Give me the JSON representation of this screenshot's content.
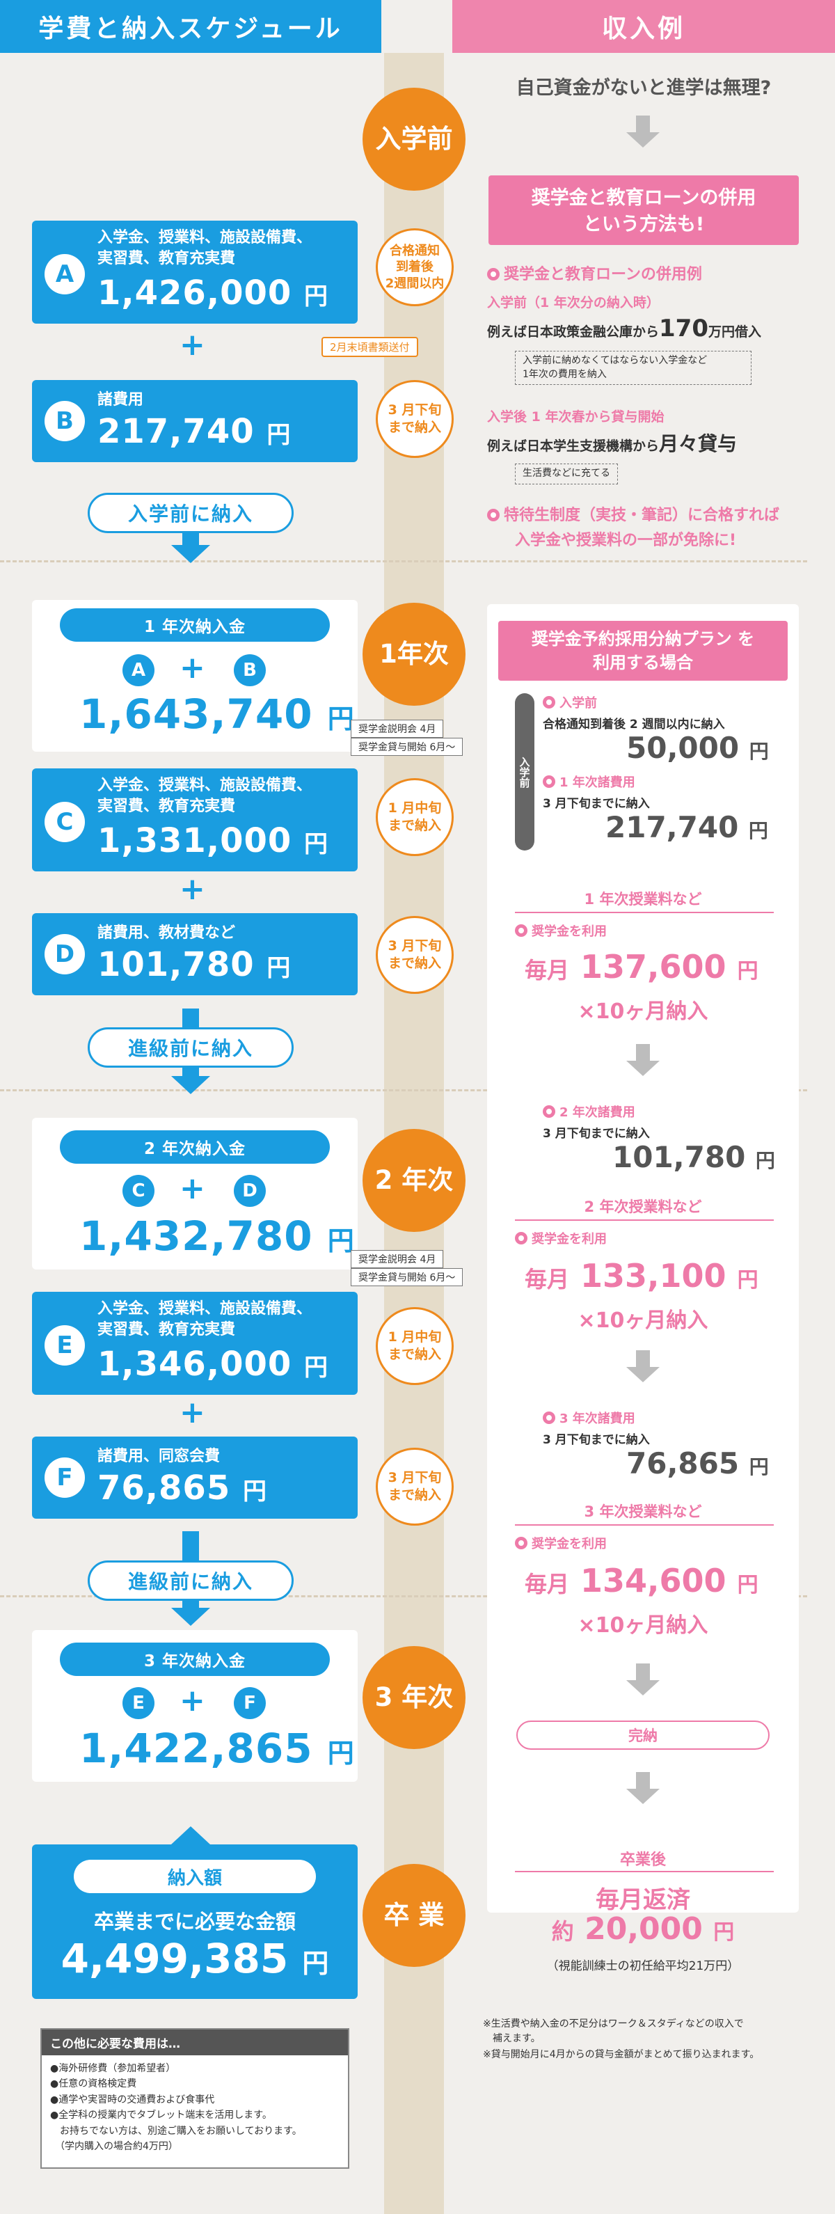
{
  "header": {
    "left_title": "学費と納入スケジュール",
    "right_title": "収入例"
  },
  "stages": {
    "pre": "入学前",
    "y1": "1年次",
    "y2": "2 年次",
    "y3": "3 年次",
    "grad": "卒 業"
  },
  "pre_enroll": {
    "a": {
      "label": "A",
      "desc": "入学金、授業料、施設設備費、\n実習費、教育充実費",
      "amount": "1,426,000",
      "yen": "円"
    },
    "b": {
      "label": "B",
      "desc": "諸費用",
      "amount": "217,740",
      "yen": "円"
    },
    "a_timing": "合格通知\n到着後\n2週間以内",
    "b_timing": "3 月下旬\nまで納入",
    "tag": "2月末頃書類送付",
    "pay_label": "入学前に納入"
  },
  "year1": {
    "total_title": "1 年次納入金",
    "formula": [
      "A",
      "B"
    ],
    "total": "1,643,740",
    "c": {
      "label": "C",
      "desc": "入学金、授業料、施設設備費、\n実習費、教育充実費",
      "amount": "1,331,000",
      "yen": "円"
    },
    "d": {
      "label": "D",
      "desc": "諸費用、教材費など",
      "amount": "101,780",
      "yen": "円"
    },
    "c_timing": "1 月中旬\nまで納入",
    "d_timing": "3 月下旬\nまで納入",
    "notes": [
      "奨学金説明会 4月",
      "奨学金貸与開始 6月〜"
    ],
    "pay_label": "進級前に納入"
  },
  "year2": {
    "total_title": "2 年次納入金",
    "formula": [
      "C",
      "D"
    ],
    "total": "1,432,780",
    "e": {
      "label": "E",
      "desc": "入学金、授業料、施設設備費、\n実習費、教育充実費",
      "amount": "1,346,000",
      "yen": "円"
    },
    "f": {
      "label": "F",
      "desc": "諸費用、同窓会費",
      "amount": "76,865",
      "yen": "円"
    },
    "e_timing": "1 月中旬\nまで納入",
    "f_timing": "3 月下旬\nまで納入",
    "notes": [
      "奨学金説明会 4月",
      "奨学金貸与開始 6月〜"
    ],
    "pay_label": "進級前に納入"
  },
  "year3": {
    "total_title": "3 年次納入金",
    "formula": [
      "E",
      "F"
    ],
    "total": "1,422,865"
  },
  "grad": {
    "title": "納入額",
    "subtitle": "卒業までに必要な金額",
    "total": "4,499,385"
  },
  "extras": {
    "title": "この他に必要な費用は…",
    "items": [
      "●海外研修費（参加希望者）",
      "●任意の資格検定費",
      "●通学や実習時の交通費および食事代",
      "●全学科の授業内でタブレット端末を活用します。",
      "　お持ちでない方は、別途ご購入をお願いしております。",
      "　（学内購入の場合約4万円）"
    ]
  },
  "income": {
    "q": "自己資金がないと進学は無理?",
    "combo_title": "奨学金と教育ローンの併用\nという方法も!",
    "combo_example": "奨学金と教育ローンの併用例",
    "pre_label": "入学前（1 年次分の納入時）",
    "loan_line_pre": "例えば日本政策金融公庫から",
    "loan_amount": "170",
    "loan_unit": "万円借入",
    "loan_note": "入学前に納めなくてはならない入学金など\n1年次の費用を納入",
    "after_label": "入学後 1 年次春から貸与開始",
    "jasso_line": "例えば日本学生支援機構から",
    "jasso_amount": "月々貸与",
    "jasso_note": "生活費などに充てる",
    "special_1": "特待生制度（実技・筆記）に合格すれば",
    "special_2": "入学金や授業料の一部が免除に!",
    "plan_title": "奨学金予約採用分納プラン を\n利用する場合",
    "plan_side": "入学前",
    "plan_pre_label": "入学前",
    "plan_pre_text": "合格通知到着後 2 週間以内に納入",
    "plan_pre_amount": "50,000",
    "plan_1_label": "1 年次諸費用",
    "plan_1_text": "3 月下旬までに納入",
    "plan_1_amount": "217,740",
    "y1_tuition": "1 年次授業料など",
    "use_scholar": "奨学金を利用",
    "y1_monthly_pre": "毎月",
    "y1_monthly": "137,600",
    "x10": "×10ヶ月納入",
    "y2_fee_label": "2 年次諸費用",
    "y2_fee_text": "3 月下旬までに納入",
    "y2_fee_amount": "101,780",
    "y2_tuition": "2 年次授業料など",
    "y2_monthly": "133,100",
    "y3_fee_label": "3 年次諸費用",
    "y3_fee_text": "3 月下旬までに納入",
    "y3_fee_amount": "76,865",
    "y3_tuition": "3 年次授業料など",
    "y3_monthly": "134,600",
    "complete": "完納",
    "after_grad": "卒業後",
    "repay": "毎月返済",
    "repay_pre": "約",
    "repay_amount": "20,000",
    "repay_note": "（視能訓練士の初任給平均21万円）",
    "footnote_1": "※生活費や納入金の不足分はワーク＆スタディなどの収入で\n　補えます。",
    "footnote_2": "※貸与開始月に4月からの貸与金額がまとめて振り込まれます。",
    "yen": "円"
  },
  "colors": {
    "blue": "#1a9de0",
    "orange": "#ee8a1d",
    "pink": "#ee7aa8",
    "bg": "#f1efec"
  }
}
